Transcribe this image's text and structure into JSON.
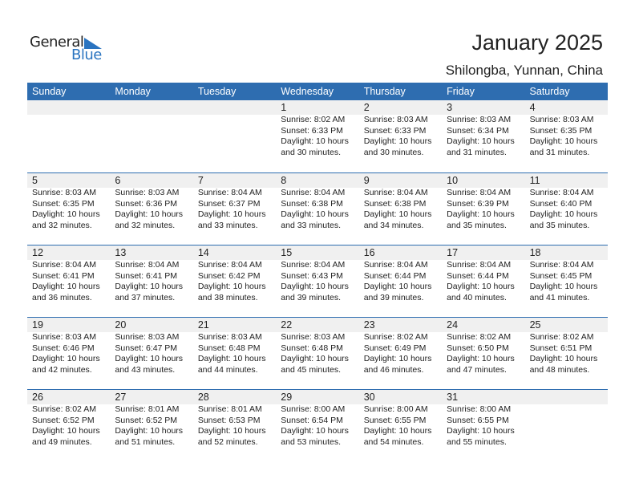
{
  "logo": {
    "general": "General",
    "blue": "Blue"
  },
  "title": "January 2025",
  "location": "Shilongba, Yunnan, China",
  "weekdays": [
    "Sunday",
    "Monday",
    "Tuesday",
    "Wednesday",
    "Thursday",
    "Friday",
    "Saturday"
  ],
  "colors": {
    "header": "#2E6DB0",
    "band": "#F0F0F0",
    "logo_blue": "#2A74C0"
  },
  "first_weekday_index": 3,
  "days": [
    {
      "day": "1",
      "sunrise": "Sunrise: 8:02 AM",
      "sunset": "Sunset: 6:33 PM",
      "daylight1": "Daylight: 10 hours",
      "daylight2": "and 30 minutes."
    },
    {
      "day": "2",
      "sunrise": "Sunrise: 8:03 AM",
      "sunset": "Sunset: 6:33 PM",
      "daylight1": "Daylight: 10 hours",
      "daylight2": "and 30 minutes."
    },
    {
      "day": "3",
      "sunrise": "Sunrise: 8:03 AM",
      "sunset": "Sunset: 6:34 PM",
      "daylight1": "Daylight: 10 hours",
      "daylight2": "and 31 minutes."
    },
    {
      "day": "4",
      "sunrise": "Sunrise: 8:03 AM",
      "sunset": "Sunset: 6:35 PM",
      "daylight1": "Daylight: 10 hours",
      "daylight2": "and 31 minutes."
    },
    {
      "day": "5",
      "sunrise": "Sunrise: 8:03 AM",
      "sunset": "Sunset: 6:35 PM",
      "daylight1": "Daylight: 10 hours",
      "daylight2": "and 32 minutes."
    },
    {
      "day": "6",
      "sunrise": "Sunrise: 8:03 AM",
      "sunset": "Sunset: 6:36 PM",
      "daylight1": "Daylight: 10 hours",
      "daylight2": "and 32 minutes."
    },
    {
      "day": "7",
      "sunrise": "Sunrise: 8:04 AM",
      "sunset": "Sunset: 6:37 PM",
      "daylight1": "Daylight: 10 hours",
      "daylight2": "and 33 minutes."
    },
    {
      "day": "8",
      "sunrise": "Sunrise: 8:04 AM",
      "sunset": "Sunset: 6:38 PM",
      "daylight1": "Daylight: 10 hours",
      "daylight2": "and 33 minutes."
    },
    {
      "day": "9",
      "sunrise": "Sunrise: 8:04 AM",
      "sunset": "Sunset: 6:38 PM",
      "daylight1": "Daylight: 10 hours",
      "daylight2": "and 34 minutes."
    },
    {
      "day": "10",
      "sunrise": "Sunrise: 8:04 AM",
      "sunset": "Sunset: 6:39 PM",
      "daylight1": "Daylight: 10 hours",
      "daylight2": "and 35 minutes."
    },
    {
      "day": "11",
      "sunrise": "Sunrise: 8:04 AM",
      "sunset": "Sunset: 6:40 PM",
      "daylight1": "Daylight: 10 hours",
      "daylight2": "and 35 minutes."
    },
    {
      "day": "12",
      "sunrise": "Sunrise: 8:04 AM",
      "sunset": "Sunset: 6:41 PM",
      "daylight1": "Daylight: 10 hours",
      "daylight2": "and 36 minutes."
    },
    {
      "day": "13",
      "sunrise": "Sunrise: 8:04 AM",
      "sunset": "Sunset: 6:41 PM",
      "daylight1": "Daylight: 10 hours",
      "daylight2": "and 37 minutes."
    },
    {
      "day": "14",
      "sunrise": "Sunrise: 8:04 AM",
      "sunset": "Sunset: 6:42 PM",
      "daylight1": "Daylight: 10 hours",
      "daylight2": "and 38 minutes."
    },
    {
      "day": "15",
      "sunrise": "Sunrise: 8:04 AM",
      "sunset": "Sunset: 6:43 PM",
      "daylight1": "Daylight: 10 hours",
      "daylight2": "and 39 minutes."
    },
    {
      "day": "16",
      "sunrise": "Sunrise: 8:04 AM",
      "sunset": "Sunset: 6:44 PM",
      "daylight1": "Daylight: 10 hours",
      "daylight2": "and 39 minutes."
    },
    {
      "day": "17",
      "sunrise": "Sunrise: 8:04 AM",
      "sunset": "Sunset: 6:44 PM",
      "daylight1": "Daylight: 10 hours",
      "daylight2": "and 40 minutes."
    },
    {
      "day": "18",
      "sunrise": "Sunrise: 8:04 AM",
      "sunset": "Sunset: 6:45 PM",
      "daylight1": "Daylight: 10 hours",
      "daylight2": "and 41 minutes."
    },
    {
      "day": "19",
      "sunrise": "Sunrise: 8:03 AM",
      "sunset": "Sunset: 6:46 PM",
      "daylight1": "Daylight: 10 hours",
      "daylight2": "and 42 minutes."
    },
    {
      "day": "20",
      "sunrise": "Sunrise: 8:03 AM",
      "sunset": "Sunset: 6:47 PM",
      "daylight1": "Daylight: 10 hours",
      "daylight2": "and 43 minutes."
    },
    {
      "day": "21",
      "sunrise": "Sunrise: 8:03 AM",
      "sunset": "Sunset: 6:48 PM",
      "daylight1": "Daylight: 10 hours",
      "daylight2": "and 44 minutes."
    },
    {
      "day": "22",
      "sunrise": "Sunrise: 8:03 AM",
      "sunset": "Sunset: 6:48 PM",
      "daylight1": "Daylight: 10 hours",
      "daylight2": "and 45 minutes."
    },
    {
      "day": "23",
      "sunrise": "Sunrise: 8:02 AM",
      "sunset": "Sunset: 6:49 PM",
      "daylight1": "Daylight: 10 hours",
      "daylight2": "and 46 minutes."
    },
    {
      "day": "24",
      "sunrise": "Sunrise: 8:02 AM",
      "sunset": "Sunset: 6:50 PM",
      "daylight1": "Daylight: 10 hours",
      "daylight2": "and 47 minutes."
    },
    {
      "day": "25",
      "sunrise": "Sunrise: 8:02 AM",
      "sunset": "Sunset: 6:51 PM",
      "daylight1": "Daylight: 10 hours",
      "daylight2": "and 48 minutes."
    },
    {
      "day": "26",
      "sunrise": "Sunrise: 8:02 AM",
      "sunset": "Sunset: 6:52 PM",
      "daylight1": "Daylight: 10 hours",
      "daylight2": "and 49 minutes."
    },
    {
      "day": "27",
      "sunrise": "Sunrise: 8:01 AM",
      "sunset": "Sunset: 6:52 PM",
      "daylight1": "Daylight: 10 hours",
      "daylight2": "and 51 minutes."
    },
    {
      "day": "28",
      "sunrise": "Sunrise: 8:01 AM",
      "sunset": "Sunset: 6:53 PM",
      "daylight1": "Daylight: 10 hours",
      "daylight2": "and 52 minutes."
    },
    {
      "day": "29",
      "sunrise": "Sunrise: 8:00 AM",
      "sunset": "Sunset: 6:54 PM",
      "daylight1": "Daylight: 10 hours",
      "daylight2": "and 53 minutes."
    },
    {
      "day": "30",
      "sunrise": "Sunrise: 8:00 AM",
      "sunset": "Sunset: 6:55 PM",
      "daylight1": "Daylight: 10 hours",
      "daylight2": "and 54 minutes."
    },
    {
      "day": "31",
      "sunrise": "Sunrise: 8:00 AM",
      "sunset": "Sunset: 6:55 PM",
      "daylight1": "Daylight: 10 hours",
      "daylight2": "and 55 minutes."
    }
  ]
}
